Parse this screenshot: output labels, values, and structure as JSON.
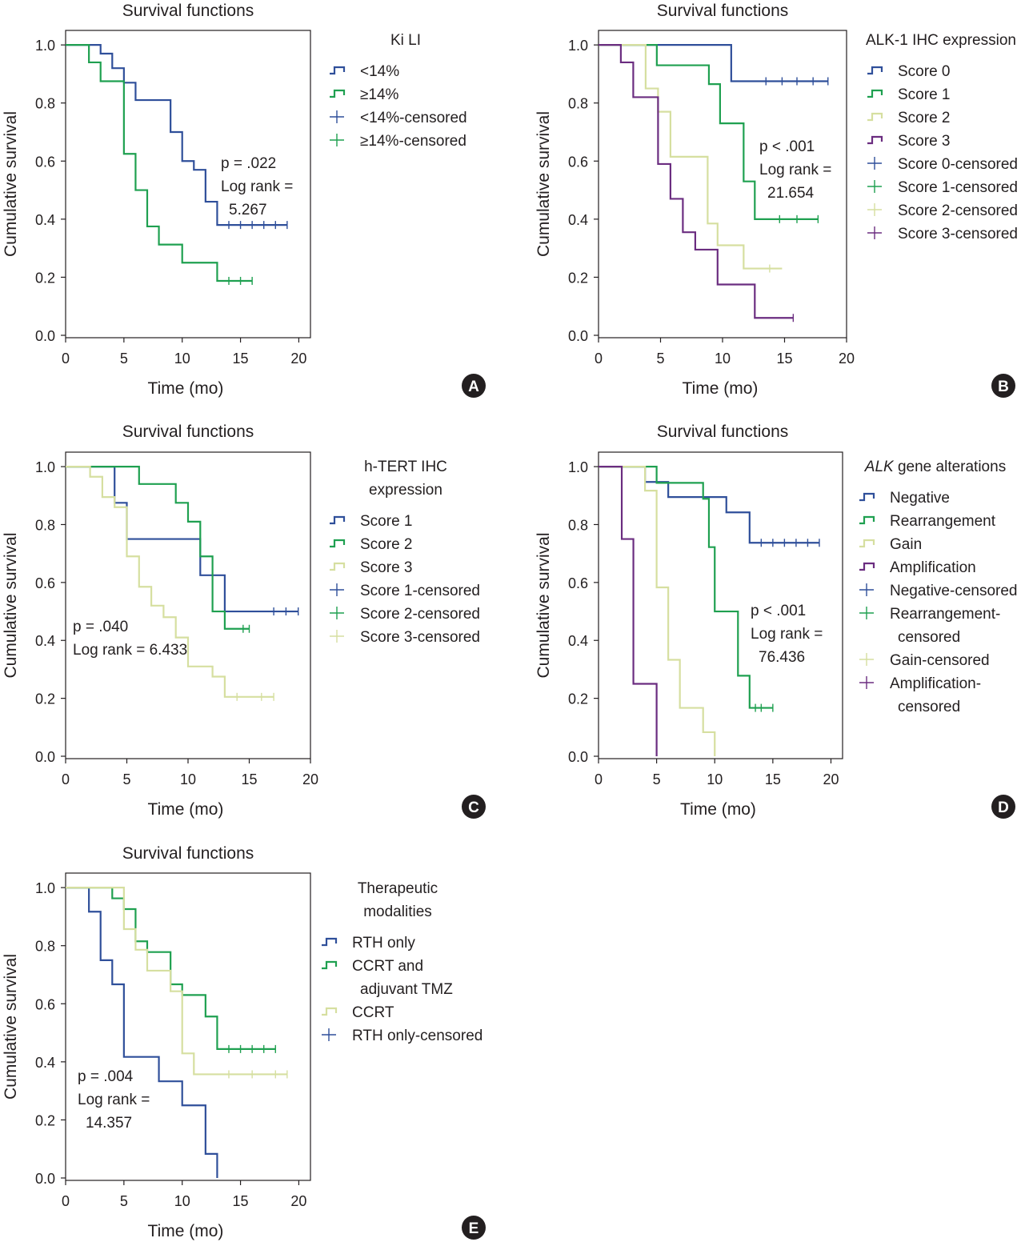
{
  "chart_data": [
    {
      "panel": "A",
      "type": "line",
      "subtype": "kaplan-meier",
      "title": "Survival functions",
      "xlabel": "Time (mo)",
      "ylabel": "Cumulative survival",
      "xlim": [
        0,
        21
      ],
      "ylim": [
        0,
        1.05
      ],
      "xticks": [
        "0",
        "5",
        "10",
        "15",
        "20"
      ],
      "yticks": [
        "0.0",
        "0.2",
        "0.4",
        "0.6",
        "0.8",
        "1.0"
      ],
      "legend_title": [
        "Ki LI"
      ],
      "stats_text": [
        "p = .022",
        "Log rank =",
        "5.267"
      ],
      "series": [
        {
          "name": "<14%",
          "censored_label": "<14%-censored",
          "color": "#2f4f9a",
          "steps": [
            [
              0,
              1.0
            ],
            [
              3,
              0.97
            ],
            [
              4,
              0.92
            ],
            [
              5,
              0.87
            ],
            [
              6,
              0.81
            ],
            [
              9,
              0.7
            ],
            [
              10,
              0.6
            ],
            [
              11,
              0.57
            ],
            [
              12,
              0.46
            ],
            [
              13,
              0.38
            ]
          ],
          "end": 19,
          "censored": [
            14,
            15,
            16,
            17,
            18,
            19
          ]
        },
        {
          "name": "≥14%",
          "censored_label": "≥14%-censored",
          "color": "#1fa050",
          "steps": [
            [
              0,
              1.0
            ],
            [
              2,
              0.94
            ],
            [
              3,
              0.875
            ],
            [
              5,
              0.625
            ],
            [
              6,
              0.5
            ],
            [
              7,
              0.375
            ],
            [
              8,
              0.3125
            ],
            [
              10,
              0.25
            ],
            [
              13,
              0.1875
            ]
          ],
          "end": 16,
          "censored": [
            14,
            15,
            16
          ]
        }
      ]
    },
    {
      "panel": "B",
      "type": "line",
      "subtype": "kaplan-meier",
      "title": "Survival functions",
      "xlabel": "Time (mo)",
      "ylabel": "Cumulative survival",
      "xlim": [
        0,
        20
      ],
      "ylim": [
        0,
        1.05
      ],
      "xticks": [
        "0",
        "5",
        "10",
        "15",
        "20"
      ],
      "yticks": [
        "0.0",
        "0.2",
        "0.4",
        "0.6",
        "0.8",
        "1.0"
      ],
      "legend_title": [
        "ALK-1 IHC expression"
      ],
      "stats_text": [
        "p < .001",
        "Log rank =",
        "21.654"
      ],
      "series": [
        {
          "name": "Score 0",
          "censored_label": "Score 0-censored",
          "color": "#2f4f9a",
          "steps": [
            [
              0,
              1.0
            ],
            [
              10.7,
              0.875
            ]
          ],
          "end": 18.5,
          "censored": [
            13.5,
            14.8,
            16,
            17.3,
            18.5
          ]
        },
        {
          "name": "Score 1",
          "censored_label": "Score 1-censored",
          "color": "#1fa050",
          "steps": [
            [
              0,
              1.0
            ],
            [
              4.7,
              0.93
            ],
            [
              8.9,
              0.865
            ],
            [
              9.8,
              0.73
            ],
            [
              11.7,
              0.53
            ],
            [
              12.6,
              0.4
            ]
          ],
          "end": 17.7,
          "censored": [
            14.6,
            16,
            17.7
          ]
        },
        {
          "name": "Score 2",
          "censored_label": "Score 2-censored",
          "color": "#d6dfa0",
          "steps": [
            [
              0,
              1.0
            ],
            [
              3.8,
              0.85
            ],
            [
              4.8,
              0.77
            ],
            [
              5.8,
              0.615
            ],
            [
              8.8,
              0.385
            ],
            [
              9.6,
              0.31
            ],
            [
              11.7,
              0.23
            ]
          ],
          "end": 14.8,
          "censored": [
            13.8
          ]
        },
        {
          "name": "Score 3",
          "censored_label": "Score 3-censored",
          "color": "#6b2d80",
          "steps": [
            [
              0,
              1.0
            ],
            [
              1.8,
              0.94
            ],
            [
              2.8,
              0.82
            ],
            [
              4.8,
              0.59
            ],
            [
              5.8,
              0.47
            ],
            [
              6.8,
              0.355
            ],
            [
              7.8,
              0.295
            ],
            [
              9.6,
              0.175
            ],
            [
              12.6,
              0.06
            ]
          ],
          "end": 15.7,
          "censored": [
            15.7
          ]
        }
      ]
    },
    {
      "panel": "C",
      "type": "line",
      "subtype": "kaplan-meier",
      "title": "Survival functions",
      "xlabel": "Time (mo)",
      "ylabel": "Cumulative survival",
      "xlim": [
        0,
        20
      ],
      "ylim": [
        0,
        1.05
      ],
      "xticks": [
        "0",
        "5",
        "10",
        "15",
        "20"
      ],
      "yticks": [
        "0.0",
        "0.2",
        "0.4",
        "0.6",
        "0.8",
        "1.0"
      ],
      "legend_title": [
        "h-TERT IHC",
        "expression"
      ],
      "stats_text": [
        "p = .040",
        "Log rank = 6.433"
      ],
      "series": [
        {
          "name": "Score 1",
          "censored_label": "Score 1-censored",
          "color": "#2f4f9a",
          "steps": [
            [
              0,
              1.0
            ],
            [
              4,
              0.875
            ],
            [
              5,
              0.75
            ],
            [
              11,
              0.625
            ],
            [
              13,
              0.5
            ]
          ],
          "end": 19,
          "censored": [
            17,
            18,
            19
          ]
        },
        {
          "name": "Score 2",
          "censored_label": "Score 2-censored",
          "color": "#1fa050",
          "steps": [
            [
              0,
              1.0
            ],
            [
              6,
              0.94
            ],
            [
              9,
              0.875
            ],
            [
              10,
              0.81
            ],
            [
              11,
              0.69
            ],
            [
              12,
              0.5
            ],
            [
              13,
              0.44
            ]
          ],
          "end": 15,
          "censored": [
            14.5,
            15
          ]
        },
        {
          "name": "Score 3",
          "censored_label": "Score 3-censored",
          "color": "#d6dfa0",
          "steps": [
            [
              0,
              1.0
            ],
            [
              2,
              0.965
            ],
            [
              3,
              0.895
            ],
            [
              4,
              0.86
            ],
            [
              5,
              0.69
            ],
            [
              6,
              0.585
            ],
            [
              7,
              0.52
            ],
            [
              8,
              0.48
            ],
            [
              9,
              0.41
            ],
            [
              10,
              0.31
            ],
            [
              12,
              0.275
            ],
            [
              13,
              0.205
            ]
          ],
          "end": 17,
          "censored": [
            14,
            16,
            17
          ]
        }
      ]
    },
    {
      "panel": "D",
      "type": "line",
      "subtype": "kaplan-meier",
      "title": "Survival functions",
      "xlabel": "Time (mo)",
      "ylabel": "Cumulative survival",
      "xlim": [
        0,
        21
      ],
      "ylim": [
        0,
        1.05
      ],
      "xticks": [
        "0",
        "5",
        "10",
        "15",
        "20"
      ],
      "yticks": [
        "0.0",
        "0.2",
        "0.4",
        "0.6",
        "0.8",
        "1.0"
      ],
      "legend_title": [
        "ALK gene alterations"
      ],
      "legend_title_italic_word": "ALK",
      "stats_text": [
        "p < .001",
        "Log rank =",
        "76.436"
      ],
      "series": [
        {
          "name": "Negative",
          "censored_label": "Negative-censored",
          "color": "#2f4f9a",
          "steps": [
            [
              0,
              1.0
            ],
            [
              4,
              0.947
            ],
            [
              6,
              0.895
            ],
            [
              11,
              0.842
            ],
            [
              13,
              0.737
            ]
          ],
          "end": 19,
          "censored": [
            14,
            15,
            16,
            17,
            18,
            19
          ]
        },
        {
          "name": "Rearrangement",
          "censored_label": "Rearrangement-censored",
          "color": "#1fa050",
          "steps": [
            [
              0,
              1.0
            ],
            [
              5,
              0.944
            ],
            [
              9,
              0.889
            ],
            [
              9.5,
              0.722
            ],
            [
              10,
              0.5
            ],
            [
              12,
              0.278
            ],
            [
              13,
              0.167
            ]
          ],
          "end": 15,
          "censored": [
            13.5,
            14,
            15
          ]
        },
        {
          "name": "Gain",
          "censored_label": "Gain-censored",
          "color": "#d6dfa0",
          "steps": [
            [
              0,
              1.0
            ],
            [
              4,
              0.917
            ],
            [
              5,
              0.583
            ],
            [
              6,
              0.333
            ],
            [
              7,
              0.167
            ],
            [
              9,
              0.083
            ],
            [
              10,
              0.0
            ]
          ],
          "end": 10,
          "censored": []
        },
        {
          "name": "Amplification",
          "censored_label": "Amplification-censored",
          "color": "#6b2d80",
          "steps": [
            [
              0,
              1.0
            ],
            [
              2,
              0.75
            ],
            [
              3,
              0.25
            ],
            [
              5,
              0.0
            ]
          ],
          "end": 5,
          "censored": []
        }
      ]
    },
    {
      "panel": "E",
      "type": "line",
      "subtype": "kaplan-meier",
      "title": "Survival functions",
      "xlabel": "Time (mo)",
      "ylabel": "Cumulative survival",
      "xlim": [
        0,
        21
      ],
      "ylim": [
        0,
        1.05
      ],
      "xticks": [
        "0",
        "5",
        "10",
        "15",
        "20"
      ],
      "yticks": [
        "0.0",
        "0.2",
        "0.4",
        "0.6",
        "0.8",
        "1.0"
      ],
      "legend_title": [
        "Therapeutic",
        "modalities"
      ],
      "stats_text": [
        "p = .004",
        "Log rank =",
        "14.357"
      ],
      "series": [
        {
          "name": "RTH only",
          "censored_label": "RTH only-censored",
          "color": "#2f4f9a",
          "steps": [
            [
              0,
              1.0
            ],
            [
              2,
              0.917
            ],
            [
              3,
              0.75
            ],
            [
              4,
              0.667
            ],
            [
              5,
              0.417
            ],
            [
              8,
              0.333
            ],
            [
              10,
              0.25
            ],
            [
              12,
              0.083
            ],
            [
              13,
              0.0
            ]
          ],
          "end": 13,
          "censored": []
        },
        {
          "name": "CCRT and adjuvant TMZ",
          "legend_lines": [
            "CCRT and",
            "adjuvant TMZ"
          ],
          "color": "#1fa050",
          "steps": [
            [
              0,
              1.0
            ],
            [
              4,
              0.963
            ],
            [
              5,
              0.926
            ],
            [
              6,
              0.815
            ],
            [
              7,
              0.778
            ],
            [
              9,
              0.667
            ],
            [
              10,
              0.63
            ],
            [
              12,
              0.556
            ],
            [
              13,
              0.444
            ]
          ],
          "end": 18,
          "censored": [
            14,
            15,
            16,
            17,
            18
          ]
        },
        {
          "name": "CCRT",
          "color": "#d6dfa0",
          "steps": [
            [
              0,
              1.0
            ],
            [
              5,
              0.857
            ],
            [
              6,
              0.786
            ],
            [
              7,
              0.714
            ],
            [
              9,
              0.643
            ],
            [
              10,
              0.429
            ],
            [
              11,
              0.357
            ]
          ],
          "end": 19,
          "censored": [
            14,
            16,
            18,
            19
          ]
        }
      ]
    }
  ]
}
